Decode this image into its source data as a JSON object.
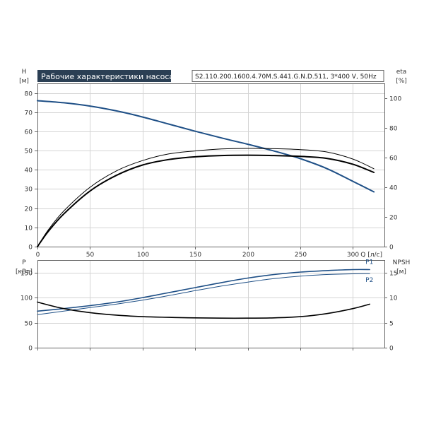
{
  "header": {
    "title": "Рабочие характеристики насоса",
    "model": "S2.110.200.1600.4.70M.S.441.G.N.D.511, 3*400 V, 50Hz"
  },
  "colors": {
    "blue": "#1e4f86",
    "black": "#000000",
    "grid": "#d4d4d4",
    "title_bg": "#2b3f54"
  },
  "chart_data": [
    {
      "type": "line",
      "name": "head-efficiency-chart",
      "xlabel": "Q [л/с]",
      "x_ticks": [
        "0",
        "50",
        "100",
        "150",
        "200",
        "250",
        "300"
      ],
      "xlim": [
        0,
        330
      ],
      "y_left": {
        "label_top": "H",
        "label_unit": "[м]",
        "lim": [
          0,
          85
        ],
        "ticks": [
          "0",
          "10",
          "20",
          "30",
          "40",
          "50",
          "60",
          "70",
          "80"
        ]
      },
      "y_right": {
        "label_top": "eta",
        "label_unit": "[%]",
        "lim": [
          0,
          110
        ],
        "ticks": [
          "0",
          "20",
          "40",
          "60",
          "80",
          "100"
        ]
      },
      "grid": true,
      "series": [
        {
          "axis": "left",
          "color": "#1e4f86",
          "width": 2,
          "x": [
            0,
            25,
            50,
            75,
            100,
            125,
            150,
            175,
            200,
            225,
            250,
            275,
            300,
            320
          ],
          "y": [
            76,
            74.9,
            73.2,
            70.7,
            67.5,
            63.8,
            60.1,
            56.6,
            53.3,
            49.8,
            45.8,
            40.7,
            34.0,
            28.5
          ]
        },
        {
          "axis": "right",
          "color": "#000000",
          "width": 1,
          "x": [
            0,
            10,
            25,
            50,
            75,
            100,
            125,
            150,
            175,
            200,
            225,
            250,
            275,
            300,
            320
          ],
          "y": [
            0,
            11,
            24,
            40,
            51,
            58,
            62.5,
            64.5,
            65.8,
            66.2,
            66.0,
            65.4,
            63.8,
            59.0,
            52.5
          ]
        },
        {
          "axis": "right",
          "color": "#000000",
          "width": 2,
          "x": [
            0,
            10,
            25,
            50,
            75,
            100,
            125,
            150,
            175,
            200,
            225,
            250,
            275,
            300,
            320
          ],
          "y": [
            0,
            10,
            22,
            37.5,
            48,
            55,
            58.7,
            60.5,
            61.4,
            61.6,
            61.4,
            60.8,
            59.5,
            55.5,
            50.0
          ]
        }
      ]
    },
    {
      "type": "line",
      "name": "power-npsh-chart",
      "x_ticks": [
        "0",
        "50",
        "100",
        "150",
        "200",
        "250",
        "300"
      ],
      "xlim": [
        0,
        330
      ],
      "y_left": {
        "label_top": "P",
        "label_unit": "[кВт]",
        "lim": [
          0,
          175
        ],
        "ticks": [
          "0",
          "50",
          "100",
          "150"
        ]
      },
      "y_right": {
        "label_top": "NPSH",
        "label_unit": "[м]",
        "lim": [
          0,
          17.5
        ],
        "ticks": [
          "0",
          "5",
          "10",
          "15"
        ]
      },
      "grid": true,
      "series": [
        {
          "name": "P1",
          "axis": "left",
          "color": "#1e4f86",
          "width": 1.6,
          "x": [
            0,
            25,
            50,
            75,
            100,
            125,
            150,
            175,
            200,
            225,
            250,
            275,
            300,
            316
          ],
          "y": [
            73,
            78,
            84,
            91,
            100,
            110,
            120,
            130,
            139,
            146,
            151,
            154,
            156,
            156
          ]
        },
        {
          "name": "P2",
          "axis": "left",
          "color": "#1e4f86",
          "width": 1,
          "x": [
            0,
            25,
            50,
            75,
            100,
            125,
            150,
            175,
            200,
            225,
            250,
            275,
            300,
            316
          ],
          "y": [
            66,
            73,
            80,
            87,
            95,
            104,
            114,
            123,
            131,
            138,
            143,
            146,
            147.5,
            148
          ]
        },
        {
          "axis": "right",
          "color": "#000000",
          "width": 1.6,
          "x": [
            0,
            25,
            50,
            75,
            100,
            125,
            150,
            175,
            200,
            225,
            250,
            275,
            300,
            316
          ],
          "y": [
            9.1,
            7.8,
            7.0,
            6.5,
            6.2,
            6.05,
            5.95,
            5.9,
            5.9,
            5.95,
            6.2,
            6.8,
            7.8,
            8.7
          ]
        }
      ]
    }
  ]
}
